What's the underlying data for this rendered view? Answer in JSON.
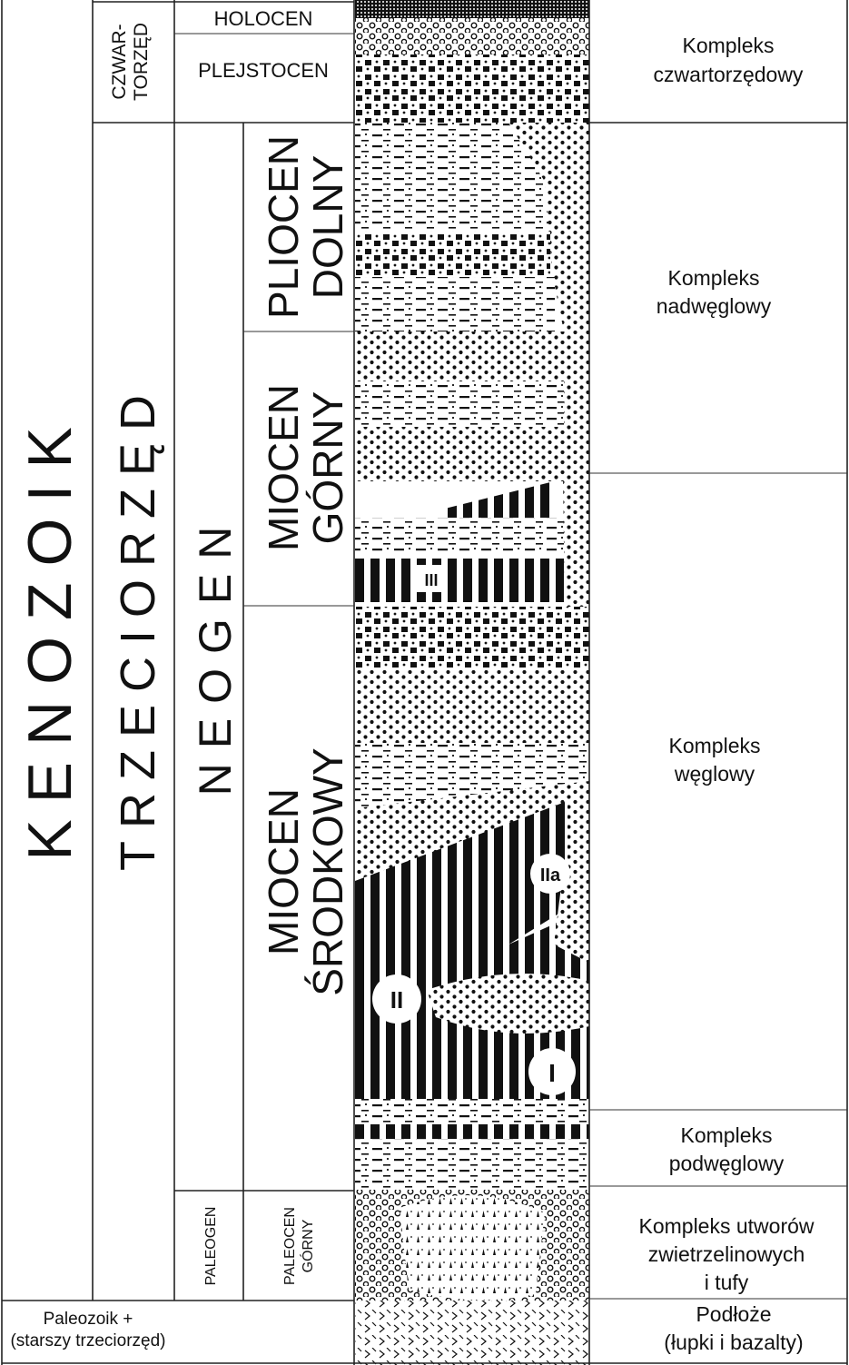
{
  "eras": {
    "kenozoik": "KENOZOIK",
    "paleozoik": "Paleozoik +",
    "paleozoik_sub": "(starszy trzeciorzęd)"
  },
  "periods": {
    "czwartorzed_1": "CZWAR-",
    "czwartorzed_2": "TORZĘD",
    "trzeciorzed": "TRZECIORZĘD"
  },
  "subperiods": {
    "neogen": "NEOGEN",
    "paleogen": "PALEOGEN"
  },
  "epochs": {
    "holocen": "HOLOCEN",
    "plejstocen": "PLEJSTOCEN",
    "pliocen_1": "PLIOCEN",
    "pliocen_2": "DOLNY",
    "miocen_gorny_1": "MIOCEN",
    "miocen_gorny_2": "GÓRNY",
    "miocen_srodkowy_1": "MIOCEN",
    "miocen_srodkowy_2": "ŚRODKOWY",
    "paleocen_1": "PALEOCEN",
    "paleocen_2": "GÓRNY"
  },
  "seams": {
    "seam_iii": "III",
    "seam_iia": "IIa",
    "seam_ii": "II",
    "seam_i": "I"
  },
  "complexes": {
    "czwartorzedowy_1": "Kompleks",
    "czwartorzedowy_2": "czwartorzędowy",
    "nadweglowy_1": "Kompleks",
    "nadweglowy_2": "nadwęglowy",
    "weglowy_1": "Kompleks",
    "weglowy_2": "węglowy",
    "podweglowy_1": "Kompleks",
    "podweglowy_2": "podwęglowy",
    "zwietrzelinowy_1": "Kompleks utworów",
    "zwietrzelinowy_2": "zwietrzelinowych",
    "zwietrzelinowy_3": "i tufy",
    "podloze_1": "Podłoże",
    "podloze_2": "(łupki i bazalty)"
  }
}
